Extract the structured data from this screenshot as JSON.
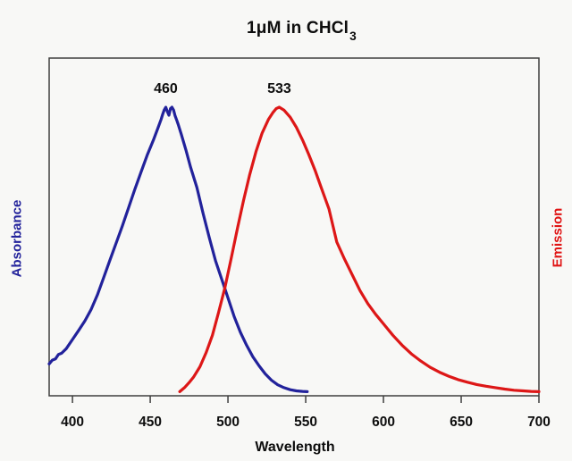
{
  "figure": {
    "title_main": "1μM in CHCl",
    "title_sub": "3",
    "x_axis_label": "Wavelength",
    "left_axis_label": "Absorbance",
    "right_axis_label": "Emission",
    "colors": {
      "absorbance_blue": "#22229b",
      "emission_red": "#dd1717",
      "frame_gray": "#3f3f3f",
      "text_black": "#0d0d0d",
      "background": "#f8f8f6"
    }
  },
  "chart_data": {
    "type": "line",
    "title": "1μM in CHCl3",
    "xlabel": "Wavelength",
    "ylabel_left": "Absorbance",
    "ylabel_right": "Emission",
    "xlim": [
      385,
      700
    ],
    "ylim": [
      0,
      1.08
    ],
    "x_ticks": [
      400,
      450,
      500,
      550,
      600,
      650,
      700
    ],
    "grid": false,
    "legend": "none",
    "annotations": [
      {
        "label": "460",
        "wavelength": 460
      },
      {
        "label": "533",
        "wavelength": 533
      }
    ],
    "series": [
      {
        "name": "Absorbance",
        "color": "#22229b",
        "peak_nm": 460,
        "points": [
          [
            385,
            0.105
          ],
          [
            387,
            0.118
          ],
          [
            389,
            0.122
          ],
          [
            391,
            0.138
          ],
          [
            393,
            0.142
          ],
          [
            396,
            0.158
          ],
          [
            400,
            0.19
          ],
          [
            404,
            0.222
          ],
          [
            408,
            0.255
          ],
          [
            412,
            0.295
          ],
          [
            416,
            0.345
          ],
          [
            420,
            0.405
          ],
          [
            424,
            0.465
          ],
          [
            428,
            0.525
          ],
          [
            432,
            0.585
          ],
          [
            436,
            0.648
          ],
          [
            440,
            0.712
          ],
          [
            444,
            0.772
          ],
          [
            448,
            0.832
          ],
          [
            452,
            0.885
          ],
          [
            455,
            0.928
          ],
          [
            457,
            0.958
          ],
          [
            458,
            0.975
          ],
          [
            459,
            0.99
          ],
          [
            460,
            1.0
          ],
          [
            461,
            0.985
          ],
          [
            462,
            0.972
          ],
          [
            463,
            0.995
          ],
          [
            464,
            1.0
          ],
          [
            465,
            0.99
          ],
          [
            466,
            0.97
          ],
          [
            467,
            0.955
          ],
          [
            468,
            0.94
          ],
          [
            470,
            0.905
          ],
          [
            473,
            0.85
          ],
          [
            476,
            0.79
          ],
          [
            480,
            0.72
          ],
          [
            484,
            0.63
          ],
          [
            488,
            0.545
          ],
          [
            492,
            0.465
          ],
          [
            496,
            0.4
          ],
          [
            500,
            0.335
          ],
          [
            504,
            0.27
          ],
          [
            508,
            0.215
          ],
          [
            512,
            0.17
          ],
          [
            516,
            0.13
          ],
          [
            520,
            0.098
          ],
          [
            524,
            0.07
          ],
          [
            528,
            0.048
          ],
          [
            532,
            0.032
          ],
          [
            536,
            0.022
          ],
          [
            540,
            0.015
          ],
          [
            544,
            0.011
          ],
          [
            548,
            0.009
          ],
          [
            551,
            0.008
          ]
        ]
      },
      {
        "name": "Emission",
        "color": "#dd1717",
        "peak_nm": 533,
        "points": [
          [
            469,
            0.008
          ],
          [
            472,
            0.022
          ],
          [
            475,
            0.04
          ],
          [
            478,
            0.06
          ],
          [
            482,
            0.095
          ],
          [
            486,
            0.145
          ],
          [
            490,
            0.205
          ],
          [
            494,
            0.285
          ],
          [
            498,
            0.37
          ],
          [
            502,
            0.47
          ],
          [
            506,
            0.575
          ],
          [
            510,
            0.675
          ],
          [
            514,
            0.765
          ],
          [
            518,
            0.845
          ],
          [
            522,
            0.91
          ],
          [
            526,
            0.957
          ],
          [
            529,
            0.982
          ],
          [
            531,
            0.995
          ],
          [
            533,
            1.0
          ],
          [
            536,
            0.99
          ],
          [
            540,
            0.965
          ],
          [
            544,
            0.93
          ],
          [
            548,
            0.885
          ],
          [
            552,
            0.835
          ],
          [
            556,
            0.78
          ],
          [
            560,
            0.72
          ],
          [
            565,
            0.645
          ],
          [
            570,
            0.53
          ],
          [
            575,
            0.47
          ],
          [
            580,
            0.415
          ],
          [
            585,
            0.36
          ],
          [
            590,
            0.315
          ],
          [
            595,
            0.278
          ],
          [
            600,
            0.245
          ],
          [
            606,
            0.205
          ],
          [
            612,
            0.17
          ],
          [
            618,
            0.14
          ],
          [
            624,
            0.115
          ],
          [
            630,
            0.093
          ],
          [
            636,
            0.076
          ],
          [
            642,
            0.062
          ],
          [
            648,
            0.05
          ],
          [
            654,
            0.041
          ],
          [
            660,
            0.033
          ],
          [
            666,
            0.027
          ],
          [
            672,
            0.022
          ],
          [
            678,
            0.017
          ],
          [
            684,
            0.013
          ],
          [
            690,
            0.011
          ],
          [
            695,
            0.009
          ],
          [
            700,
            0.008
          ]
        ]
      }
    ]
  }
}
